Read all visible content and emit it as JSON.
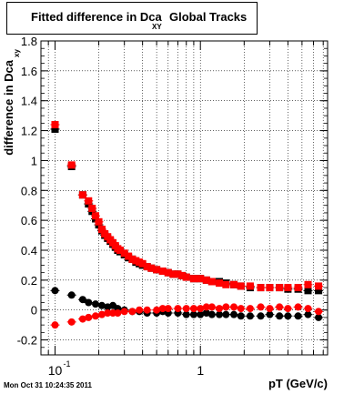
{
  "title": {
    "main": "Fitted difference in Dca",
    "subscript": "XY",
    "tail": "Global Tracks"
  },
  "footer": {
    "timestamp": "Mon Oct 31 10:24:35 2011"
  },
  "chart_data": {
    "type": "scatter",
    "title": "Fitted difference in Dca XY Global Tracks",
    "xlabel": "pT (GeV/c)",
    "ylabel": "difference in Dca",
    "ylabel_subscript": "xy",
    "xscale": "log",
    "xlim": [
      0.08,
      7.5
    ],
    "ylim": [
      -0.3,
      1.8
    ],
    "grid": true,
    "yticks": [
      {
        "v": -0.2,
        "label": "-0.2"
      },
      {
        "v": 0,
        "label": "0"
      },
      {
        "v": 0.2,
        "label": "0.2"
      },
      {
        "v": 0.4,
        "label": "0.4"
      },
      {
        "v": 0.6,
        "label": "0.6"
      },
      {
        "v": 0.8,
        "label": "0.8"
      },
      {
        "v": 1.0,
        "label": "1"
      },
      {
        "v": 1.2,
        "label": "1.2"
      },
      {
        "v": 1.4,
        "label": "1.4"
      },
      {
        "v": 1.6,
        "label": "1.6"
      },
      {
        "v": 1.8,
        "label": "1.8"
      }
    ],
    "xticks": [
      {
        "v": 0.1,
        "label": "10",
        "sup": "-1"
      },
      {
        "v": 1.0,
        "label": "1",
        "sup": ""
      }
    ],
    "series": [
      {
        "color": "#000000",
        "marker": "square",
        "points": [
          [
            0.1,
            1.21
          ],
          [
            0.13,
            0.96
          ],
          [
            0.155,
            0.77
          ],
          [
            0.17,
            0.71
          ],
          [
            0.18,
            0.66
          ],
          [
            0.19,
            0.61
          ],
          [
            0.2,
            0.57
          ],
          [
            0.21,
            0.53
          ],
          [
            0.22,
            0.5
          ],
          [
            0.23,
            0.48
          ],
          [
            0.24,
            0.46
          ],
          [
            0.25,
            0.44
          ],
          [
            0.26,
            0.42
          ],
          [
            0.27,
            0.4
          ],
          [
            0.28,
            0.39
          ],
          [
            0.3,
            0.37
          ],
          [
            0.32,
            0.35
          ],
          [
            0.34,
            0.34
          ],
          [
            0.36,
            0.32
          ],
          [
            0.38,
            0.31
          ],
          [
            0.4,
            0.3
          ],
          [
            0.43,
            0.29
          ],
          [
            0.46,
            0.28
          ],
          [
            0.5,
            0.27
          ],
          [
            0.55,
            0.26
          ],
          [
            0.6,
            0.25
          ],
          [
            0.65,
            0.24
          ],
          [
            0.7,
            0.24
          ],
          [
            0.75,
            0.23
          ],
          [
            0.8,
            0.22
          ],
          [
            0.9,
            0.21
          ],
          [
            1.0,
            0.21
          ],
          [
            1.1,
            0.2
          ],
          [
            1.2,
            0.19
          ],
          [
            1.35,
            0.19
          ],
          [
            1.5,
            0.18
          ],
          [
            1.7,
            0.17
          ],
          [
            1.9,
            0.16
          ],
          [
            2.2,
            0.15
          ],
          [
            2.6,
            0.15
          ],
          [
            3.0,
            0.15
          ],
          [
            3.5,
            0.15
          ],
          [
            4.0,
            0.14
          ],
          [
            4.7,
            0.14
          ],
          [
            5.5,
            0.13
          ],
          [
            6.5,
            0.13
          ]
        ]
      },
      {
        "color": "#ff0000",
        "marker": "square",
        "points": [
          [
            0.1,
            1.24
          ],
          [
            0.13,
            0.97
          ],
          [
            0.155,
            0.77
          ],
          [
            0.17,
            0.73
          ],
          [
            0.18,
            0.68
          ],
          [
            0.19,
            0.63
          ],
          [
            0.2,
            0.59
          ],
          [
            0.21,
            0.54
          ],
          [
            0.22,
            0.51
          ],
          [
            0.23,
            0.49
          ],
          [
            0.24,
            0.47
          ],
          [
            0.25,
            0.45
          ],
          [
            0.26,
            0.43
          ],
          [
            0.27,
            0.41
          ],
          [
            0.28,
            0.4
          ],
          [
            0.3,
            0.38
          ],
          [
            0.32,
            0.36
          ],
          [
            0.34,
            0.34
          ],
          [
            0.36,
            0.33
          ],
          [
            0.38,
            0.32
          ],
          [
            0.4,
            0.31
          ],
          [
            0.43,
            0.29
          ],
          [
            0.46,
            0.28
          ],
          [
            0.5,
            0.27
          ],
          [
            0.55,
            0.26
          ],
          [
            0.6,
            0.25
          ],
          [
            0.65,
            0.24
          ],
          [
            0.7,
            0.24
          ],
          [
            0.75,
            0.23
          ],
          [
            0.8,
            0.22
          ],
          [
            0.9,
            0.21
          ],
          [
            1.0,
            0.21
          ],
          [
            1.1,
            0.2
          ],
          [
            1.2,
            0.19
          ],
          [
            1.35,
            0.18
          ],
          [
            1.5,
            0.17
          ],
          [
            1.7,
            0.17
          ],
          [
            1.9,
            0.16
          ],
          [
            2.2,
            0.16
          ],
          [
            2.6,
            0.15
          ],
          [
            3.0,
            0.15
          ],
          [
            3.5,
            0.15
          ],
          [
            4.0,
            0.15
          ],
          [
            4.7,
            0.15
          ],
          [
            5.5,
            0.17
          ],
          [
            6.5,
            0.16
          ]
        ]
      },
      {
        "color": "#000000",
        "marker": "circle",
        "points": [
          [
            0.1,
            0.13
          ],
          [
            0.13,
            0.1
          ],
          [
            0.155,
            0.07
          ],
          [
            0.17,
            0.05
          ],
          [
            0.19,
            0.04
          ],
          [
            0.21,
            0.03
          ],
          [
            0.23,
            0.02
          ],
          [
            0.25,
            0.03
          ],
          [
            0.27,
            0.01
          ],
          [
            0.3,
            0.0
          ],
          [
            0.34,
            -0.01
          ],
          [
            0.38,
            -0.01
          ],
          [
            0.43,
            -0.02
          ],
          [
            0.5,
            -0.02
          ],
          [
            0.55,
            -0.01
          ],
          [
            0.6,
            -0.02
          ],
          [
            0.7,
            -0.02
          ],
          [
            0.8,
            -0.03
          ],
          [
            0.9,
            -0.03
          ],
          [
            1.0,
            -0.03
          ],
          [
            1.1,
            -0.02
          ],
          [
            1.2,
            -0.03
          ],
          [
            1.35,
            -0.03
          ],
          [
            1.5,
            -0.03
          ],
          [
            1.7,
            -0.03
          ],
          [
            1.9,
            -0.04
          ],
          [
            2.2,
            -0.04
          ],
          [
            2.6,
            -0.04
          ],
          [
            3.0,
            -0.03
          ],
          [
            3.5,
            -0.04
          ],
          [
            4.0,
            -0.04
          ],
          [
            4.7,
            -0.04
          ],
          [
            5.5,
            -0.03
          ],
          [
            6.5,
            -0.05
          ]
        ]
      },
      {
        "color": "#ff0000",
        "marker": "circle",
        "points": [
          [
            0.1,
            -0.1
          ],
          [
            0.13,
            -0.08
          ],
          [
            0.155,
            -0.06
          ],
          [
            0.17,
            -0.05
          ],
          [
            0.19,
            -0.04
          ],
          [
            0.21,
            -0.03
          ],
          [
            0.23,
            -0.02
          ],
          [
            0.25,
            -0.02
          ],
          [
            0.27,
            -0.02
          ],
          [
            0.3,
            -0.01
          ],
          [
            0.34,
            -0.01
          ],
          [
            0.38,
            0.0
          ],
          [
            0.43,
            0.0
          ],
          [
            0.5,
            0.0
          ],
          [
            0.55,
            0.01
          ],
          [
            0.6,
            0.01
          ],
          [
            0.7,
            0.01
          ],
          [
            0.8,
            0.01
          ],
          [
            0.9,
            0.01
          ],
          [
            1.0,
            0.01
          ],
          [
            1.1,
            0.02
          ],
          [
            1.2,
            0.02
          ],
          [
            1.35,
            0.01
          ],
          [
            1.5,
            0.02
          ],
          [
            1.7,
            0.02
          ],
          [
            1.9,
            0.01
          ],
          [
            2.2,
            0.01
          ],
          [
            2.6,
            0.02
          ],
          [
            3.0,
            0.01
          ],
          [
            3.5,
            0.02
          ],
          [
            4.0,
            0.01
          ],
          [
            4.7,
            0.02
          ],
          [
            5.5,
            0.01
          ],
          [
            6.5,
            -0.01
          ]
        ]
      }
    ]
  }
}
